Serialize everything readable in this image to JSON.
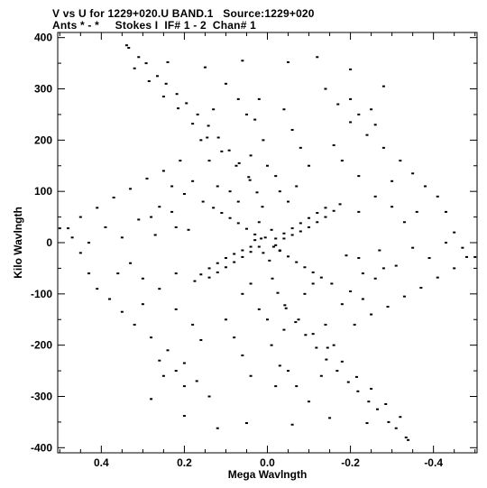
{
  "chart_data": {
    "type": "scatter",
    "title": "V vs U for 1229+020.U BAND.1   Source:1229+020",
    "subtitle": "Ants * - *     Stokes I  IF# 1 - 2  Chan# 1",
    "xlabel": "Mega Wavlngth",
    "ylabel": "Kilo Wavlngth",
    "xlim": [
      0.505,
      -0.505
    ],
    "ylim": [
      -410,
      410
    ],
    "x_ticks": [
      0.4,
      0.2,
      0,
      -0.2,
      -0.4
    ],
    "x_tick_labels": [
      "0.4",
      "0.2",
      "0.0",
      "-0.2",
      "-0.4"
    ],
    "y_ticks": [
      400,
      300,
      200,
      100,
      0,
      -100,
      -200,
      -300,
      -400
    ],
    "y_tick_labels": [
      "400",
      "300",
      "200",
      "100",
      "0",
      "-100",
      "-200",
      "-300",
      "-400"
    ],
    "grid": false,
    "marker_color": "#000000",
    "series": [
      {
        "points": [
          [
            0.339,
            385
          ],
          [
            0.334,
            380
          ],
          [
            0.31,
            362
          ],
          [
            0.292,
            350
          ],
          [
            0.265,
            325
          ],
          [
            0.244,
            310
          ],
          [
            0.218,
            290
          ],
          [
            0.195,
            272
          ],
          [
            0.168,
            250
          ],
          [
            0.142,
            228
          ],
          [
            0.118,
            205
          ],
          [
            0.092,
            180
          ],
          [
            0.068,
            155
          ],
          [
            0.045,
            128
          ],
          [
            0.025,
            98
          ],
          [
            0.012,
            70
          ],
          [
            -0.339,
            -385
          ],
          [
            -0.334,
            -380
          ],
          [
            -0.31,
            -362
          ],
          [
            -0.292,
            -350
          ],
          [
            -0.265,
            -325
          ],
          [
            -0.244,
            -310
          ],
          [
            -0.218,
            -290
          ],
          [
            -0.195,
            -272
          ],
          [
            -0.168,
            -250
          ],
          [
            -0.142,
            -228
          ],
          [
            -0.118,
            -205
          ],
          [
            -0.092,
            -180
          ],
          [
            -0.068,
            -155
          ],
          [
            -0.045,
            -128
          ],
          [
            -0.025,
            -98
          ],
          [
            -0.012,
            -70
          ],
          [
            0.32,
            340
          ],
          [
            0.285,
            315
          ],
          [
            0.25,
            285
          ],
          [
            0.215,
            262
          ],
          [
            0.18,
            232
          ],
          [
            0.145,
            205
          ],
          [
            0.11,
            178
          ],
          [
            0.075,
            150
          ],
          [
            0.042,
            122
          ],
          [
            -0.32,
            -340
          ],
          [
            -0.285,
            -315
          ],
          [
            -0.25,
            -285
          ],
          [
            -0.215,
            -262
          ],
          [
            -0.18,
            -232
          ],
          [
            -0.145,
            -205
          ],
          [
            -0.11,
            -178
          ],
          [
            -0.075,
            -150
          ],
          [
            -0.042,
            -122
          ],
          [
            0.24,
            352
          ],
          [
            0.15,
            342
          ],
          [
            0.06,
            355
          ],
          [
            -0.05,
            352
          ],
          [
            -0.12,
            362
          ],
          [
            -0.2,
            338
          ],
          [
            -0.28,
            305
          ],
          [
            -0.24,
            -352
          ],
          [
            -0.15,
            -342
          ],
          [
            -0.06,
            -355
          ],
          [
            0.05,
            -352
          ],
          [
            0.12,
            -362
          ],
          [
            0.2,
            -338
          ],
          [
            0.28,
            -305
          ],
          [
            0.48,
            28
          ],
          [
            0.45,
            50
          ],
          [
            0.43,
            0
          ],
          [
            0.41,
            68
          ],
          [
            0.39,
            30
          ],
          [
            0.37,
            88
          ],
          [
            0.35,
            10
          ],
          [
            0.33,
            105
          ],
          [
            0.31,
            45
          ],
          [
            0.29,
            125
          ],
          [
            0.27,
            15
          ],
          [
            0.25,
            140
          ],
          [
            0.23,
            60
          ],
          [
            0.21,
            160
          ],
          [
            0.19,
            25
          ],
          [
            -0.48,
            -28
          ],
          [
            -0.45,
            -50
          ],
          [
            -0.43,
            0
          ],
          [
            -0.41,
            -68
          ],
          [
            -0.39,
            -30
          ],
          [
            -0.37,
            -88
          ],
          [
            -0.35,
            -10
          ],
          [
            -0.33,
            -105
          ],
          [
            -0.31,
            -45
          ],
          [
            -0.29,
            -125
          ],
          [
            -0.27,
            -15
          ],
          [
            -0.25,
            -140
          ],
          [
            -0.23,
            -60
          ],
          [
            -0.21,
            -160
          ],
          [
            -0.19,
            -25
          ],
          [
            -0.5,
            -28
          ],
          [
            -0.47,
            -10
          ],
          [
            -0.45,
            20
          ],
          [
            -0.43,
            60
          ],
          [
            -0.41,
            90
          ],
          [
            -0.38,
            110
          ],
          [
            -0.35,
            135
          ],
          [
            -0.32,
            160
          ],
          [
            -0.3,
            120
          ],
          [
            -0.28,
            185
          ],
          [
            -0.26,
            90
          ],
          [
            -0.24,
            210
          ],
          [
            -0.22,
            60
          ],
          [
            -0.2,
            235
          ],
          [
            0.5,
            28
          ],
          [
            0.47,
            10
          ],
          [
            0.45,
            -20
          ],
          [
            0.43,
            -60
          ],
          [
            0.41,
            -90
          ],
          [
            0.38,
            -110
          ],
          [
            0.35,
            -135
          ],
          [
            0.32,
            -160
          ],
          [
            0.3,
            -120
          ],
          [
            0.28,
            -185
          ],
          [
            0.26,
            -90
          ],
          [
            0.24,
            -210
          ],
          [
            0.22,
            -60
          ],
          [
            0.2,
            -235
          ],
          [
            0.155,
            80
          ],
          [
            0.13,
            68
          ],
          [
            0.11,
            58
          ],
          [
            0.09,
            48
          ],
          [
            0.07,
            38
          ],
          [
            0.05,
            27
          ],
          [
            0.03,
            16
          ],
          [
            0.015,
            8
          ],
          [
            -0.155,
            -80
          ],
          [
            -0.13,
            -68
          ],
          [
            -0.11,
            -58
          ],
          [
            -0.09,
            -48
          ],
          [
            -0.07,
            -38
          ],
          [
            -0.05,
            -27
          ],
          [
            -0.03,
            -16
          ],
          [
            -0.015,
            -8
          ],
          [
            -0.14,
            68
          ],
          [
            -0.12,
            58
          ],
          [
            -0.1,
            48
          ],
          [
            -0.08,
            38
          ],
          [
            -0.06,
            28
          ],
          [
            -0.04,
            18
          ],
          [
            -0.02,
            8
          ],
          [
            0.14,
            -68
          ],
          [
            0.12,
            -58
          ],
          [
            0.1,
            -48
          ],
          [
            0.08,
            -38
          ],
          [
            0.06,
            -28
          ],
          [
            0.04,
            -18
          ],
          [
            0.02,
            -8
          ],
          [
            0.175,
            -75
          ],
          [
            0.16,
            -62
          ],
          [
            0.14,
            -50
          ],
          [
            0.12,
            -40
          ],
          [
            0.1,
            -30
          ],
          [
            0.08,
            -22
          ],
          [
            0.06,
            -15
          ],
          [
            0.04,
            -8
          ],
          [
            -0.175,
            75
          ],
          [
            -0.16,
            62
          ],
          [
            -0.14,
            50
          ],
          [
            -0.12,
            40
          ],
          [
            -0.1,
            30
          ],
          [
            -0.08,
            22
          ],
          [
            -0.06,
            15
          ],
          [
            -0.04,
            8
          ],
          [
            0.02,
            40
          ],
          [
            -0.01,
            25
          ],
          [
            0.005,
            10
          ],
          [
            -0.02,
            -5
          ],
          [
            0.01,
            -20
          ],
          [
            -0.005,
            -35
          ],
          [
            0.03,
            5
          ],
          [
            -0.03,
            -15
          ],
          [
            0.02,
            280
          ],
          [
            0.03,
            240
          ],
          [
            0.01,
            200
          ],
          [
            0.04,
            170
          ],
          [
            0.0,
            150
          ],
          [
            -0.02,
            130
          ],
          [
            -0.04,
            260
          ],
          [
            -0.06,
            220
          ],
          [
            -0.08,
            185
          ],
          [
            -0.1,
            150
          ],
          [
            -0.02,
            -280
          ],
          [
            -0.03,
            -240
          ],
          [
            -0.01,
            -200
          ],
          [
            -0.04,
            -170
          ],
          [
            0.0,
            -150
          ],
          [
            0.02,
            -130
          ],
          [
            0.04,
            -260
          ],
          [
            0.06,
            -220
          ],
          [
            0.08,
            -185
          ],
          [
            0.1,
            -150
          ],
          [
            0.1,
            310
          ],
          [
            0.07,
            280
          ],
          [
            0.05,
            250
          ],
          [
            0.13,
            260
          ],
          [
            0.16,
            200
          ],
          [
            0.14,
            160
          ],
          [
            0.18,
            120
          ],
          [
            0.2,
            95
          ],
          [
            0.23,
            110
          ],
          [
            0.26,
            70
          ],
          [
            0.28,
            50
          ],
          [
            0.22,
            30
          ],
          [
            -0.1,
            -310
          ],
          [
            -0.07,
            -280
          ],
          [
            -0.05,
            -250
          ],
          [
            -0.13,
            -260
          ],
          [
            -0.16,
            -200
          ],
          [
            -0.14,
            -160
          ],
          [
            -0.18,
            -120
          ],
          [
            -0.2,
            -95
          ],
          [
            -0.23,
            -110
          ],
          [
            -0.26,
            -70
          ],
          [
            -0.28,
            -50
          ],
          [
            -0.22,
            -30
          ],
          [
            -0.14,
            300
          ],
          [
            -0.17,
            270
          ],
          [
            -0.2,
            280
          ],
          [
            -0.22,
            250
          ],
          [
            -0.25,
            260
          ],
          [
            -0.26,
            230
          ],
          [
            -0.16,
            190
          ],
          [
            -0.18,
            160
          ],
          [
            -0.22,
            130
          ],
          [
            -0.3,
            70
          ],
          [
            -0.33,
            40
          ],
          [
            -0.36,
            60
          ],
          [
            0.14,
            -300
          ],
          [
            0.17,
            -270
          ],
          [
            0.2,
            -280
          ],
          [
            0.22,
            -250
          ],
          [
            0.25,
            -260
          ],
          [
            0.26,
            -230
          ],
          [
            0.16,
            -190
          ],
          [
            0.18,
            -160
          ],
          [
            0.22,
            -130
          ],
          [
            0.3,
            -70
          ],
          [
            0.33,
            -40
          ],
          [
            0.36,
            -60
          ],
          [
            0.09,
            100
          ],
          [
            0.07,
            80
          ],
          [
            0.12,
            110
          ],
          [
            -0.03,
            100
          ],
          [
            -0.05,
            80
          ],
          [
            -0.07,
            110
          ],
          [
            0.06,
            -100
          ],
          [
            0.04,
            -80
          ],
          [
            -0.09,
            -100
          ],
          [
            -0.11,
            -80
          ]
        ]
      }
    ]
  }
}
